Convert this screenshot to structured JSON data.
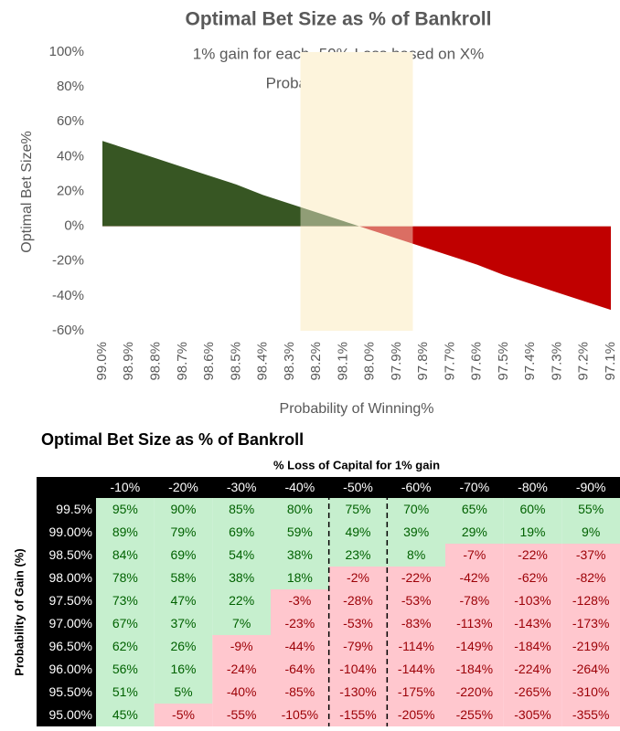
{
  "chart_data": {
    "type": "area",
    "title": "Optimal Bet Size as % of Bankroll",
    "subtitle": [
      "1% gain for each -50% Loss based on X%",
      "Probability of Sucess"
    ],
    "x_label": "Probability of Winning%",
    "y_label": "Optimal Bet Size%",
    "categories": [
      "99.0%",
      "98.9%",
      "98.8%",
      "98.7%",
      "98.6%",
      "98.5%",
      "98.4%",
      "98.3%",
      "98.2%",
      "98.1%",
      "98.0%",
      "97.9%",
      "97.8%",
      "97.7%",
      "97.6%",
      "97.5%",
      "97.4%",
      "97.3%",
      "97.2%",
      "97.1%"
    ],
    "values": [
      49,
      44,
      39,
      34,
      29,
      24,
      18,
      13,
      8,
      3,
      -2,
      -7,
      -12,
      -17,
      -22,
      -28,
      -33,
      -38,
      -43,
      -48
    ],
    "positive_color": "#375623",
    "negative_color": "#c00000",
    "highlight_color": "#fdf5dc",
    "ylim": [
      -60,
      100
    ],
    "yticks": [
      {
        "value": -60,
        "label": "-60%"
      },
      {
        "value": -40,
        "label": "-40%"
      },
      {
        "value": -20,
        "label": "-20%"
      },
      {
        "value": 0,
        "label": "0%"
      },
      {
        "value": 20,
        "label": "20%"
      },
      {
        "value": 40,
        "label": "40%"
      },
      {
        "value": 60,
        "label": "60%"
      },
      {
        "value": 80,
        "label": "80%"
      },
      {
        "value": 100,
        "label": "100%"
      }
    ]
  },
  "table": {
    "title": "Optimal Bet Size as % of Bankroll",
    "column_group": "% Loss of Capital for 1% gain",
    "row_group": "Probability of Gain (%)",
    "columns": [
      "-10%",
      "-20%",
      "-30%",
      "-40%",
      "-50%",
      "-60%",
      "-70%",
      "-80%",
      "-90%"
    ],
    "rows": [
      {
        "label": "99.5%",
        "cells": [
          "95%",
          "90%",
          "85%",
          "80%",
          "75%",
          "70%",
          "65%",
          "60%",
          "55%"
        ]
      },
      {
        "label": "99.00%",
        "cells": [
          "89%",
          "79%",
          "69%",
          "59%",
          "49%",
          "39%",
          "29%",
          "19%",
          "9%"
        ]
      },
      {
        "label": "98.50%",
        "cells": [
          "84%",
          "69%",
          "54%",
          "38%",
          "23%",
          "8%",
          "-7%",
          "-22%",
          "-37%"
        ]
      },
      {
        "label": "98.00%",
        "cells": [
          "78%",
          "58%",
          "38%",
          "18%",
          "-2%",
          "-22%",
          "-42%",
          "-62%",
          "-82%"
        ]
      },
      {
        "label": "97.50%",
        "cells": [
          "73%",
          "47%",
          "22%",
          "-3%",
          "-28%",
          "-53%",
          "-78%",
          "-103%",
          "-128%"
        ]
      },
      {
        "label": "97.00%",
        "cells": [
          "67%",
          "37%",
          "7%",
          "-23%",
          "-53%",
          "-83%",
          "-113%",
          "-143%",
          "-173%"
        ]
      },
      {
        "label": "96.50%",
        "cells": [
          "62%",
          "26%",
          "-9%",
          "-44%",
          "-79%",
          "-114%",
          "-149%",
          "-184%",
          "-219%"
        ]
      },
      {
        "label": "96.00%",
        "cells": [
          "56%",
          "16%",
          "-24%",
          "-64%",
          "-104%",
          "-144%",
          "-184%",
          "-224%",
          "-264%"
        ]
      },
      {
        "label": "95.50%",
        "cells": [
          "51%",
          "5%",
          "-40%",
          "-85%",
          "-130%",
          "-175%",
          "-220%",
          "-265%",
          "-310%"
        ]
      },
      {
        "label": "95.00%",
        "cells": [
          "45%",
          "-5%",
          "-55%",
          "-105%",
          "-155%",
          "-205%",
          "-255%",
          "-305%",
          "-355%"
        ]
      }
    ]
  }
}
